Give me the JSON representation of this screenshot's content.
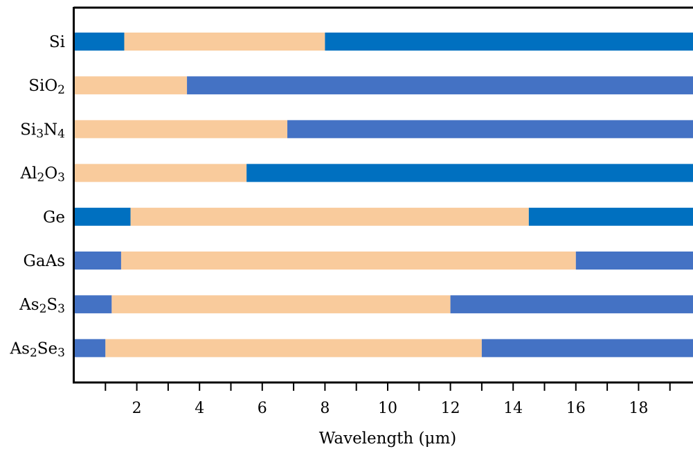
{
  "chart_data": {
    "type": "bar",
    "orientation": "horizontal-stacked-ranges",
    "xlabel": "Wavelength (μm)",
    "xlim": [
      0,
      19.8
    ],
    "xticks_labeled": [
      2,
      4,
      6,
      8,
      10,
      12,
      14,
      16,
      18
    ],
    "xticks_minor": [
      1,
      3,
      5,
      7,
      9,
      11,
      13,
      15,
      17,
      19
    ],
    "grid": false,
    "legend": "none",
    "colors": {
      "transparent_window": "#F9CB9C",
      "absorbing_dark": "#0070C0",
      "absorbing_medium": "#4472C4"
    },
    "materials": [
      {
        "base": "Si",
        "sub": "",
        "start": 1.6,
        "end": 8.0,
        "color": "#0070C0"
      },
      {
        "base": "SiO",
        "sub": "2",
        "start": 0.0,
        "end": 3.6,
        "color": "#4472C4"
      },
      {
        "base": "Si",
        "sub": "3",
        "base2": "N",
        "sub2": "4",
        "start": 0.0,
        "end": 6.8,
        "color": "#4472C4"
      },
      {
        "base": "Al",
        "sub": "2",
        "base2": "O",
        "sub2": "3",
        "start": 0.0,
        "end": 5.5,
        "color": "#0070C0"
      },
      {
        "base": "Ge",
        "sub": "",
        "start": 1.8,
        "end": 14.5,
        "color": "#0070C0"
      },
      {
        "base": "GaAs",
        "sub": "",
        "start": 1.5,
        "end": 16.0,
        "color": "#4472C4"
      },
      {
        "base": "As",
        "sub": "2",
        "base2": "S",
        "sub2": "3",
        "start": 1.2,
        "end": 12.0,
        "color": "#4472C4"
      },
      {
        "base": "As",
        "sub": "2",
        "base2": "Se",
        "sub2": "3",
        "start": 1.0,
        "end": 13.0,
        "color": "#4472C4"
      }
    ]
  }
}
